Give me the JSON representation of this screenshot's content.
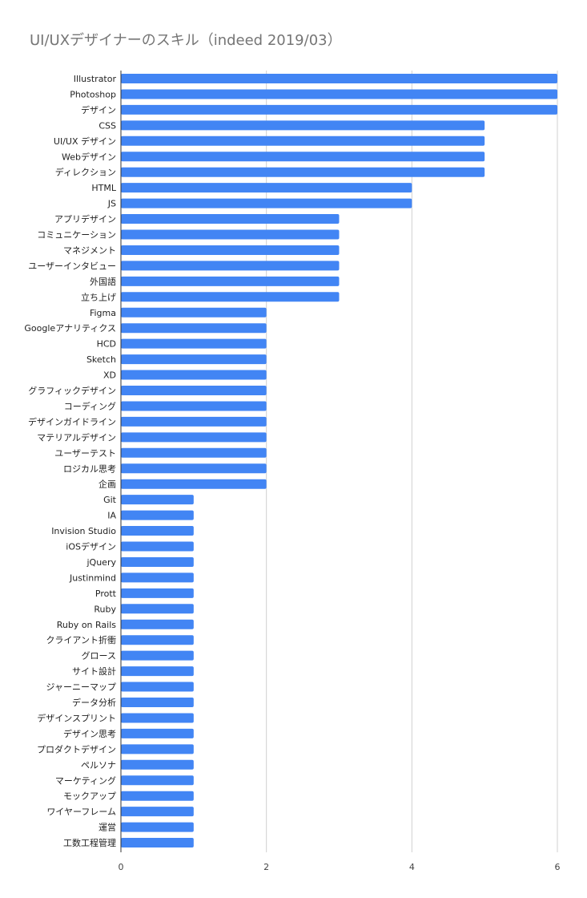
{
  "chart_data": {
    "type": "bar",
    "orientation": "horizontal",
    "title": "UI/UXデザイナーのスキル（indeed 2019/03）",
    "xlabel": "",
    "ylabel": "",
    "xlim": [
      0,
      6
    ],
    "x_ticks": [
      "0",
      "2",
      "4",
      "6"
    ],
    "grid": "vertical gridlines",
    "legend": "none",
    "bar_color": "#4285f4",
    "categories": [
      "Illustrator",
      "Photoshop",
      "デザイン",
      "CSS",
      "UI/UX デザイン",
      "Webデザイン",
      "ディレクション",
      "HTML",
      "JS",
      "アプリデザイン",
      "コミュニケーション",
      "マネジメント",
      "ユーザーインタビュー",
      "外国語",
      "立ち上げ",
      "Figma",
      "Googleアナリティクス",
      "HCD",
      "Sketch",
      "XD",
      "グラフィックデザイン",
      "コーディング",
      "デザインガイドライン",
      "マテリアルデザイン",
      "ユーザーテスト",
      "ロジカル思考",
      "企画",
      "Git",
      "IA",
      "Invision Studio",
      "iOSデザイン",
      "jQuery",
      "Justinmind",
      "Prott",
      "Ruby",
      "Ruby on Rails",
      "クライアント折衝",
      "グロース",
      "サイト設計",
      "ジャーニーマップ",
      "データ分析",
      "デザインスプリント",
      "デザイン思考",
      "プロダクトデザイン",
      "ペルソナ",
      "マーケティング",
      "モックアップ",
      "ワイヤーフレーム",
      "運営",
      "工数工程管理"
    ],
    "values": [
      6,
      6,
      6,
      5,
      5,
      5,
      5,
      4,
      4,
      3,
      3,
      3,
      3,
      3,
      3,
      2,
      2,
      2,
      2,
      2,
      2,
      2,
      2,
      2,
      2,
      2,
      2,
      1,
      1,
      1,
      1,
      1,
      1,
      1,
      1,
      1,
      1,
      1,
      1,
      1,
      1,
      1,
      1,
      1,
      1,
      1,
      1,
      1,
      1,
      1
    ]
  }
}
